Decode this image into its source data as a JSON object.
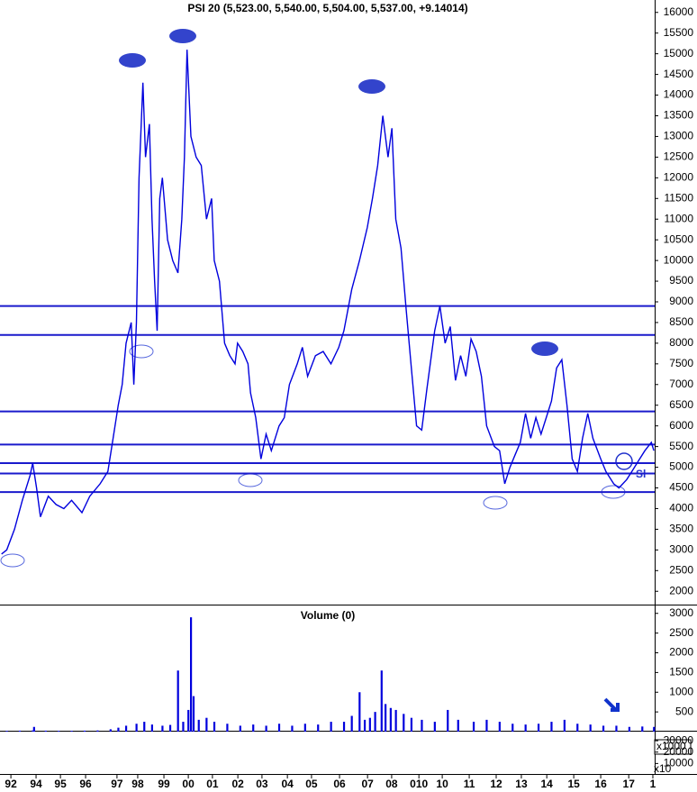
{
  "chart_data": [
    {
      "type": "line",
      "title": "PSI 20 (5,523.00, 5,540.00, 5,504.00, 5,537.00, +9.14014)",
      "color": "#0000dd",
      "x": [
        1992.8,
        1993.0,
        1993.3,
        1993.6,
        1993.9,
        1994.0,
        1994.15,
        1994.3,
        1994.6,
        1994.9,
        1995.2,
        1995.5,
        1995.9,
        1996.2,
        1996.6,
        1996.9,
        1997.1,
        1997.3,
        1997.45,
        1997.6,
        1997.8,
        1997.9,
        1998.0,
        1998.1,
        1998.25,
        1998.35,
        1998.5,
        1998.6,
        1998.7,
        1998.8,
        1998.9,
        1999.0,
        1999.2,
        1999.4,
        1999.6,
        1999.75,
        1999.85,
        1999.95,
        2000.1,
        2000.3,
        2000.5,
        2000.7,
        2000.9,
        2001.0,
        2001.2,
        2001.4,
        2001.6,
        2001.8,
        2001.9,
        2002.1,
        2002.3,
        2002.4,
        2002.6,
        2002.8,
        2003.0,
        2003.2,
        2003.5,
        2003.7,
        2003.9,
        2004.2,
        2004.4,
        2004.6,
        2004.9,
        2005.2,
        2005.5,
        2005.8,
        2006.0,
        2006.3,
        2006.6,
        2006.9,
        2007.1,
        2007.3,
        2007.5,
        2007.7,
        2007.85,
        2008.0,
        2008.2,
        2008.4,
        2008.6,
        2008.8,
        2009.0,
        2009.2,
        2009.5,
        2009.7,
        2009.9,
        2010.1,
        2010.3,
        2010.5,
        2010.7,
        2010.9,
        2011.1,
        2011.3,
        2011.5,
        2011.8,
        2012.0,
        2012.2,
        2012.4,
        2012.6,
        2012.8,
        2013.0,
        2013.2,
        2013.4,
        2013.6,
        2013.8,
        2014.0,
        2014.2,
        2014.4,
        2014.6,
        2014.8,
        2015.0,
        2015.2,
        2015.4,
        2015.6,
        2015.9,
        2016.1,
        2016.4,
        2016.6,
        2016.9,
        2017.1,
        2017.4,
        2017.6,
        2017.85,
        2017.95
      ],
      "values": [
        2900,
        3000,
        3500,
        4200,
        4800,
        5100,
        4500,
        3800,
        4300,
        4100,
        4000,
        4200,
        3900,
        4300,
        4600,
        4900,
        5700,
        6500,
        7000,
        8000,
        8500,
        7000,
        8500,
        12000,
        14300,
        12500,
        13300,
        11000,
        9500,
        8300,
        11500,
        12000,
        10500,
        10000,
        9700,
        11000,
        12500,
        15100,
        13000,
        12500,
        12300,
        11000,
        11500,
        10000,
        9500,
        8000,
        7700,
        7500,
        8000,
        7800,
        7500,
        6800,
        6200,
        5200,
        5800,
        5400,
        6000,
        6200,
        7000,
        7500,
        7900,
        7200,
        7700,
        7800,
        7500,
        7900,
        8300,
        9300,
        10000,
        10800,
        11500,
        12300,
        13500,
        12500,
        13200,
        11000,
        10300,
        8800,
        7400,
        6000,
        5900,
        6900,
        8300,
        8900,
        8000,
        8400,
        7100,
        7700,
        7200,
        8100,
        7800,
        7200,
        6000,
        5500,
        5400,
        4600,
        5000,
        5300,
        5600,
        6300,
        5700,
        6200,
        5800,
        6200,
        6600,
        7400,
        7600,
        6500,
        5200,
        4900,
        5700,
        6300,
        5700,
        5200,
        4900,
        4600,
        4500,
        4700,
        4900,
        5200,
        5400,
        5600,
        5400
      ],
      "hlines": [
        8900,
        8200,
        6350,
        5550,
        5100,
        4850,
        4400
      ],
      "annotations": [
        "Sl"
      ],
      "xlim": [
        1992.74,
        2017.98
      ],
      "xticks": [
        {
          "value": 1993.16,
          "label": "92"
        },
        {
          "value": 1994.13,
          "label": "94"
        },
        {
          "value": 1995.07,
          "label": "95"
        },
        {
          "value": 1996.04,
          "label": "96"
        },
        {
          "value": 1997.25,
          "label": "97"
        },
        {
          "value": 1998.05,
          "label": "98"
        },
        {
          "value": 1999.06,
          "label": "99"
        },
        {
          "value": 2000.0,
          "label": "00"
        },
        {
          "value": 2000.93,
          "label": "01"
        },
        {
          "value": 2001.91,
          "label": "02"
        },
        {
          "value": 2002.84,
          "label": "03"
        },
        {
          "value": 2003.82,
          "label": "04"
        },
        {
          "value": 2004.75,
          "label": "05"
        },
        {
          "value": 2005.83,
          "label": "06"
        },
        {
          "value": 2006.91,
          "label": "07"
        },
        {
          "value": 2007.84,
          "label": "08"
        },
        {
          "value": 2008.89,
          "label": "010"
        },
        {
          "value": 2009.79,
          "label": "10"
        },
        {
          "value": 2010.83,
          "label": "11"
        },
        {
          "value": 2011.87,
          "label": "12"
        },
        {
          "value": 2012.84,
          "label": "13"
        },
        {
          "value": 2013.82,
          "label": "14"
        },
        {
          "value": 2014.86,
          "label": "15"
        },
        {
          "value": 2015.9,
          "label": "16"
        },
        {
          "value": 2016.98,
          "label": "17"
        },
        {
          "value": 2017.91,
          "label": "1"
        }
      ],
      "ylim": [
        1700,
        16300
      ],
      "yticks": [
        2000,
        2500,
        3000,
        3500,
        4000,
        4500,
        5000,
        5500,
        6000,
        6500,
        7000,
        7500,
        8000,
        8500,
        9000,
        9500,
        10000,
        10500,
        11000,
        11500,
        12000,
        12500,
        13000,
        13500,
        14000,
        14500,
        15000,
        15500,
        16000
      ]
    },
    {
      "type": "bar",
      "title": "Volume (0)",
      "color": "#0000dd",
      "unit_label": "x1000",
      "x": [
        1993.0,
        1993.5,
        1994.0,
        1994.05,
        1994.5,
        1995.0,
        1995.5,
        1996.0,
        1996.5,
        1997.0,
        1997.3,
        1997.6,
        1998.0,
        1998.3,
        1998.6,
        1999.0,
        1999.3,
        1999.6,
        1999.8,
        2000.0,
        2000.1,
        2000.2,
        2000.4,
        2000.7,
        2001.0,
        2001.5,
        2002.0,
        2002.5,
        2003.0,
        2003.5,
        2004.0,
        2004.5,
        2005.0,
        2005.5,
        2006.0,
        2006.3,
        2006.6,
        2006.8,
        2007.0,
        2007.2,
        2007.45,
        2007.6,
        2007.8,
        2008.0,
        2008.3,
        2008.6,
        2009.0,
        2009.5,
        2010.0,
        2010.4,
        2011.0,
        2011.5,
        2012.0,
        2012.5,
        2013.0,
        2013.5,
        2014.0,
        2014.5,
        2015.0,
        2015.5,
        2016.0,
        2016.5,
        2017.0,
        2017.5,
        2017.95
      ],
      "values": [
        20,
        25,
        30,
        120,
        25,
        20,
        20,
        25,
        30,
        60,
        100,
        150,
        200,
        250,
        180,
        150,
        170,
        1550,
        250,
        550,
        2900,
        900,
        300,
        350,
        250,
        200,
        150,
        180,
        150,
        200,
        150,
        200,
        180,
        250,
        250,
        400,
        1000,
        300,
        350,
        500,
        1550,
        700,
        600,
        550,
        450,
        350,
        300,
        250,
        550,
        300,
        250,
        300,
        250,
        200,
        180,
        200,
        250,
        300,
        200,
        180,
        150,
        150,
        120,
        130,
        120
      ],
      "ylim": [
        0,
        3200
      ],
      "yticks": [
        500,
        1000,
        1500,
        2000,
        2500,
        3000
      ]
    },
    {
      "type": "indicator",
      "unit_label": "x10",
      "ylim": [
        0,
        38000
      ],
      "yticks": [
        10000,
        20000,
        30000
      ]
    }
  ]
}
